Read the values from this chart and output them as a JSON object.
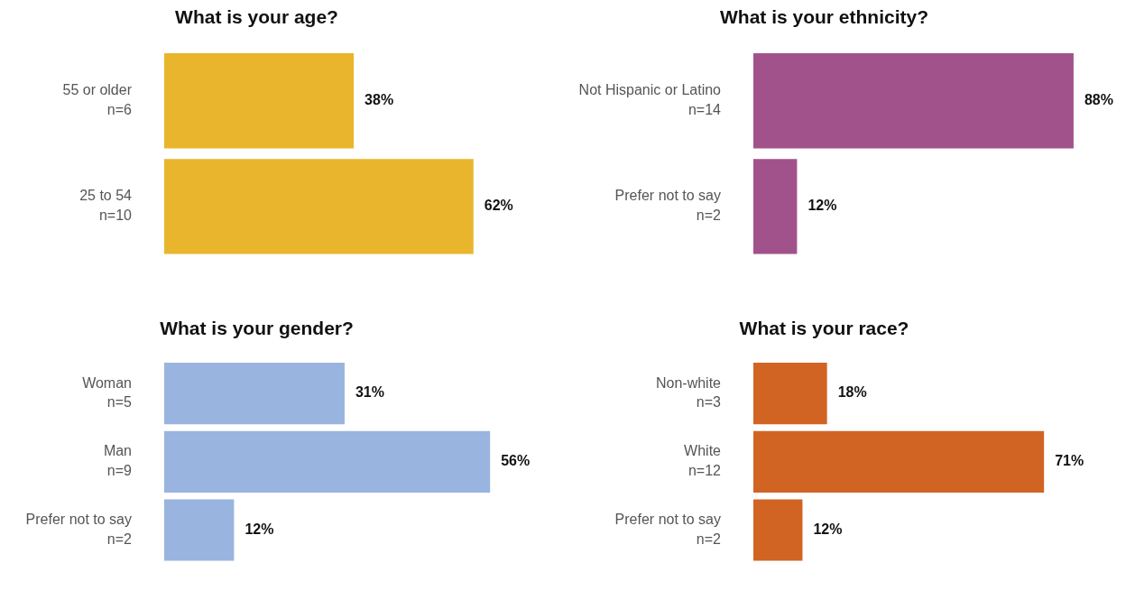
{
  "chart_data": [
    {
      "type": "bar",
      "orientation": "horizontal",
      "title": "What is your age?",
      "categories": [
        "55 or older\nn=6",
        "25 to 54\nn=10"
      ],
      "values": [
        38,
        62
      ],
      "value_labels": [
        "38%",
        "62%"
      ],
      "color": "#e9b52c",
      "tick_labels": "y",
      "grid": false,
      "legend": false
    },
    {
      "type": "bar",
      "orientation": "horizontal",
      "title": "What is your ethnicity?",
      "categories": [
        "Not Hispanic or Latino\nn=14",
        "Prefer not to say\nn=2"
      ],
      "values": [
        88,
        12
      ],
      "value_labels": [
        "88%",
        "12%"
      ],
      "color": "#a2528a",
      "tick_labels": "y",
      "grid": false,
      "legend": false
    },
    {
      "type": "bar",
      "orientation": "horizontal",
      "title": "What is your gender?",
      "categories": [
        "Woman\nn=5",
        "Man\nn=9",
        "Prefer not to say\nn=2"
      ],
      "values": [
        31,
        56,
        12
      ],
      "value_labels": [
        "31%",
        "56%",
        "12%"
      ],
      "color": "#9ab4e0",
      "tick_labels": "y",
      "grid": false,
      "legend": false
    },
    {
      "type": "bar",
      "orientation": "horizontal",
      "title": "What is your race?",
      "categories": [
        "Non-white\nn=3",
        "White\nn=12",
        "Prefer not to say\nn=2"
      ],
      "values": [
        18,
        71,
        12
      ],
      "value_labels": [
        "18%",
        "71%",
        "12%"
      ],
      "color": "#d16423",
      "tick_labels": "y",
      "grid": false,
      "legend": false
    }
  ]
}
